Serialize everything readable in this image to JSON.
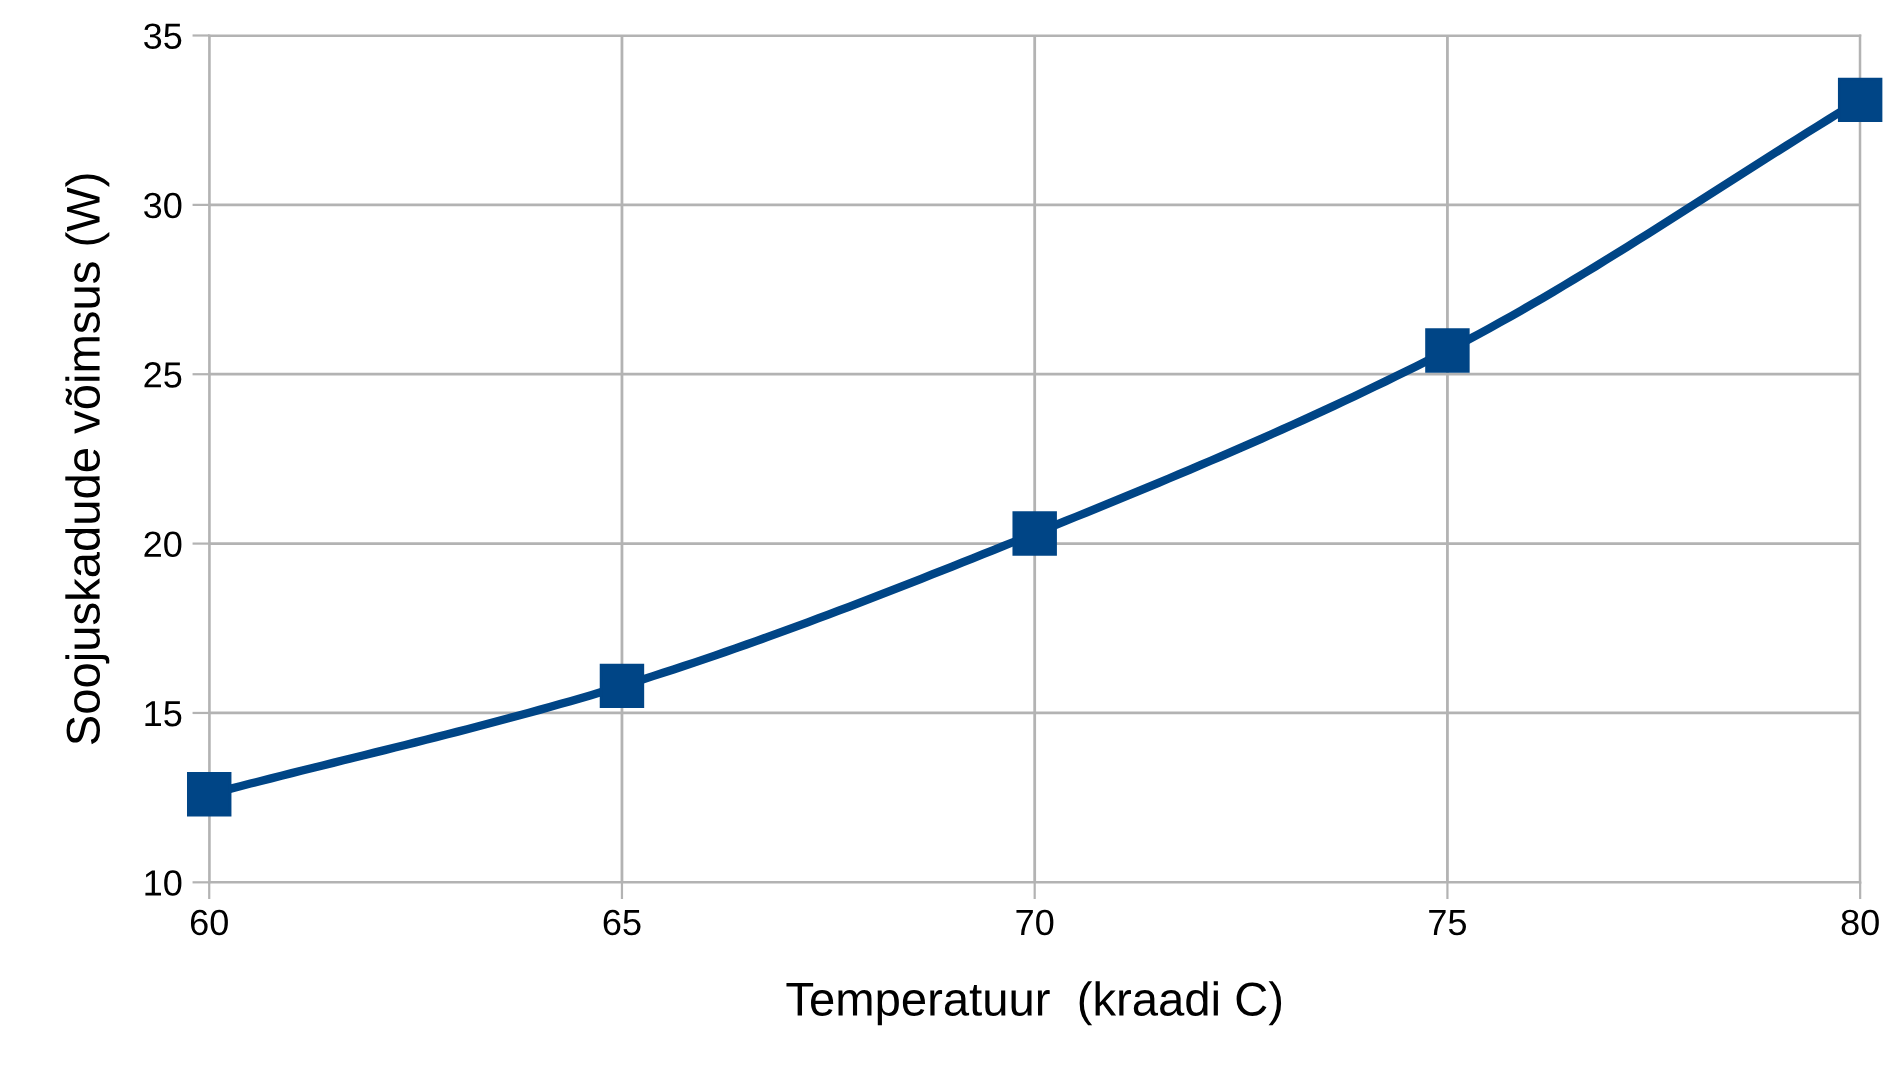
{
  "chart_data": {
    "type": "line",
    "xlabel": "Temperatuur  (kraadi C)",
    "ylabel": "Soojuskadude võimsus (W)",
    "x": [
      60,
      65,
      70,
      75,
      80
    ],
    "series": [
      {
        "color": "#004586",
        "values": [
          12.6,
          15.8,
          20.3,
          25.7,
          33.1
        ]
      }
    ],
    "xlim": [
      60,
      80
    ],
    "xticks": [
      60,
      65,
      70,
      75,
      80
    ],
    "ylim": [
      10,
      35
    ],
    "yticks": [
      10,
      15,
      20,
      25,
      30,
      35
    ],
    "grid": true,
    "marker": "square",
    "line_style": "solid",
    "legend": false
  }
}
